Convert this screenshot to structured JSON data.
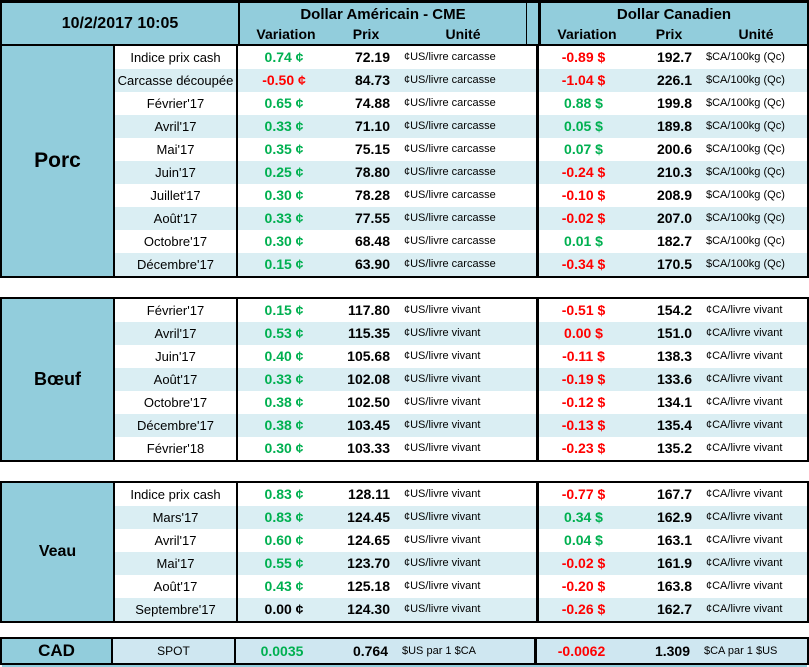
{
  "window": {
    "datetime": "10/2/2017 10:05"
  },
  "header": {
    "us_title": "Dollar Américain - CME",
    "ca_title": "Dollar Canadien",
    "variation": "Variation",
    "prix": "Prix",
    "unite": "Unité"
  },
  "colors": {
    "accent_blue": "#92cddc",
    "row_alt_blue": "#daeef3",
    "cad_row_blue": "#cfe7f1",
    "positive_green": "#00b050",
    "negative_red": "#ff0000",
    "border_black": "#000000"
  },
  "sections": [
    {
      "name": "Porc",
      "us_unit": "¢US/livre carcasse",
      "ca_unit": "$CA/100kg (Qc)",
      "rows": [
        {
          "label": "Indice prix cash",
          "us_var": "0.74 ¢",
          "us_sign": "pos",
          "us_prix": "72.19",
          "ca_var": "-0.89 $",
          "ca_sign": "neg",
          "ca_prix": "192.7"
        },
        {
          "label": "Carcasse découpée",
          "us_var": "-0.50 ¢",
          "us_sign": "neg",
          "us_prix": "84.73",
          "ca_var": "-1.04 $",
          "ca_sign": "neg",
          "ca_prix": "226.1"
        },
        {
          "label": "Février'17",
          "us_var": "0.65 ¢",
          "us_sign": "pos",
          "us_prix": "74.88",
          "ca_var": "0.88 $",
          "ca_sign": "pos",
          "ca_prix": "199.8"
        },
        {
          "label": "Avril'17",
          "us_var": "0.33 ¢",
          "us_sign": "pos",
          "us_prix": "71.10",
          "ca_var": "0.05 $",
          "ca_sign": "pos",
          "ca_prix": "189.8"
        },
        {
          "label": "Mai'17",
          "us_var": "0.35 ¢",
          "us_sign": "pos",
          "us_prix": "75.15",
          "ca_var": "0.07 $",
          "ca_sign": "pos",
          "ca_prix": "200.6"
        },
        {
          "label": "Juin'17",
          "us_var": "0.25 ¢",
          "us_sign": "pos",
          "us_prix": "78.80",
          "ca_var": "-0.24 $",
          "ca_sign": "neg",
          "ca_prix": "210.3"
        },
        {
          "label": "Juillet'17",
          "us_var": "0.30 ¢",
          "us_sign": "pos",
          "us_prix": "78.28",
          "ca_var": "-0.10 $",
          "ca_sign": "neg",
          "ca_prix": "208.9"
        },
        {
          "label": "Août'17",
          "us_var": "0.33 ¢",
          "us_sign": "pos",
          "us_prix": "77.55",
          "ca_var": "-0.02 $",
          "ca_sign": "neg",
          "ca_prix": "207.0"
        },
        {
          "label": "Octobre'17",
          "us_var": "0.30 ¢",
          "us_sign": "pos",
          "us_prix": "68.48",
          "ca_var": "0.01 $",
          "ca_sign": "pos",
          "ca_prix": "182.7"
        },
        {
          "label": "Décembre'17",
          "us_var": "0.15 ¢",
          "us_sign": "pos",
          "us_prix": "63.90",
          "ca_var": "-0.34 $",
          "ca_sign": "neg",
          "ca_prix": "170.5"
        }
      ]
    },
    {
      "name": "Bœuf",
      "us_unit": "¢US/livre vivant",
      "ca_unit": "¢CA/livre vivant",
      "rows": [
        {
          "label": "Février'17",
          "us_var": "0.15 ¢",
          "us_sign": "pos",
          "us_prix": "117.80",
          "ca_var": "-0.51 $",
          "ca_sign": "neg",
          "ca_prix": "154.2"
        },
        {
          "label": "Avril'17",
          "us_var": "0.53 ¢",
          "us_sign": "pos",
          "us_prix": "115.35",
          "ca_var": "0.00 $",
          "ca_sign": "neg",
          "ca_prix": "151.0"
        },
        {
          "label": "Juin'17",
          "us_var": "0.40 ¢",
          "us_sign": "pos",
          "us_prix": "105.68",
          "ca_var": "-0.11 $",
          "ca_sign": "neg",
          "ca_prix": "138.3"
        },
        {
          "label": "Août'17",
          "us_var": "0.33 ¢",
          "us_sign": "pos",
          "us_prix": "102.08",
          "ca_var": "-0.19 $",
          "ca_sign": "neg",
          "ca_prix": "133.6"
        },
        {
          "label": "Octobre'17",
          "us_var": "0.38 ¢",
          "us_sign": "pos",
          "us_prix": "102.50",
          "ca_var": "-0.12 $",
          "ca_sign": "neg",
          "ca_prix": "134.1"
        },
        {
          "label": "Décembre'17",
          "us_var": "0.38 ¢",
          "us_sign": "pos",
          "us_prix": "103.45",
          "ca_var": "-0.13 $",
          "ca_sign": "neg",
          "ca_prix": "135.4"
        },
        {
          "label": "Février'18",
          "us_var": "0.30 ¢",
          "us_sign": "pos",
          "us_prix": "103.33",
          "ca_var": "-0.23 $",
          "ca_sign": "neg",
          "ca_prix": "135.2"
        }
      ]
    },
    {
      "name": "Veau",
      "us_unit": "¢US/livre vivant",
      "ca_unit": "¢CA/livre vivant",
      "rows": [
        {
          "label": "Indice prix cash",
          "us_var": "0.83 ¢",
          "us_sign": "pos",
          "us_prix": "128.11",
          "ca_var": "-0.77 $",
          "ca_sign": "neg",
          "ca_prix": "167.7"
        },
        {
          "label": "Mars'17",
          "us_var": "0.83 ¢",
          "us_sign": "pos",
          "us_prix": "124.45",
          "ca_var": "0.34 $",
          "ca_sign": "pos",
          "ca_prix": "162.9"
        },
        {
          "label": "Avril'17",
          "us_var": "0.60 ¢",
          "us_sign": "pos",
          "us_prix": "124.65",
          "ca_var": "0.04 $",
          "ca_sign": "pos",
          "ca_prix": "163.1"
        },
        {
          "label": "Mai'17",
          "us_var": "0.55 ¢",
          "us_sign": "pos",
          "us_prix": "123.70",
          "ca_var": "-0.02 $",
          "ca_sign": "neg",
          "ca_prix": "161.9"
        },
        {
          "label": "Août'17",
          "us_var": "0.43 ¢",
          "us_sign": "pos",
          "us_prix": "125.18",
          "ca_var": "-0.20 $",
          "ca_sign": "neg",
          "ca_prix": "163.8"
        },
        {
          "label": "Septembre'17",
          "us_var": "0.00 ¢",
          "us_sign": "neu",
          "us_prix": "124.30",
          "ca_var": "-0.26 $",
          "ca_sign": "neg",
          "ca_prix": "162.7"
        }
      ]
    }
  ],
  "cad": {
    "name": "CAD",
    "label": "SPOT",
    "us_var": "0.0035",
    "us_sign": "pos",
    "us_prix": "0.764",
    "us_unit": "$US par 1 $CA",
    "ca_var": "-0.0062",
    "ca_sign": "neg",
    "ca_prix": "1.309",
    "ca_unit": "$CA par 1 $US"
  }
}
